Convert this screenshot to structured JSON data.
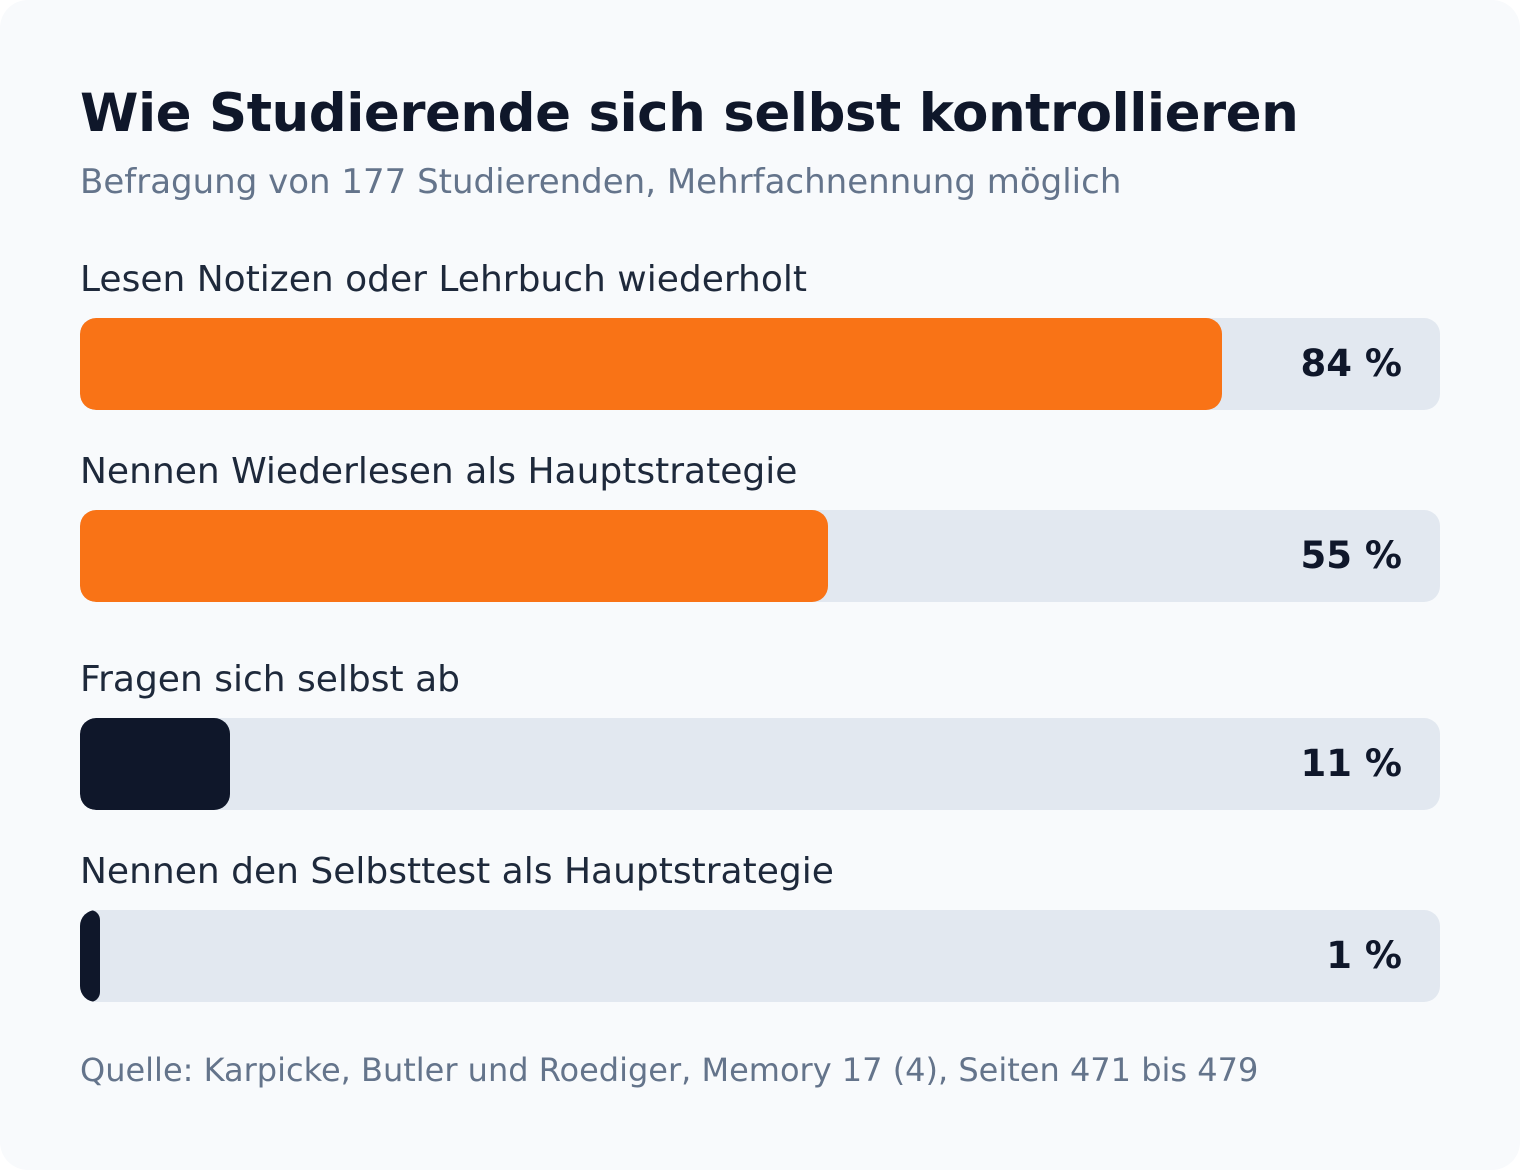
{
  "title": "Wie Studierende sich selbst kontrollieren",
  "subtitle": "Befragung von 177 Studierenden, Mehrfachnennung möglich",
  "source": "Quelle: Karpicke, Butler und Roediger, Memory 17 (4), Seiten 471 bis 479",
  "colors": {
    "background": "#f8fafc",
    "track": "#e2e8f0",
    "accent_orange": "#f97316",
    "accent_dark": "#0f172a",
    "title": "#0f172a",
    "muted": "#64748b"
  },
  "chart_data": {
    "type": "bar",
    "orientation": "horizontal",
    "xlim": [
      0,
      100
    ],
    "unit": "%",
    "categories": [
      "Lesen Notizen oder Lehrbuch wiederholt",
      "Nennen Wiederlesen als Hauptstrategie",
      "Fragen sich selbst ab",
      "Nennen den Selbsttest als Hauptstrategie"
    ],
    "values": [
      84,
      55,
      11,
      1
    ],
    "value_labels": [
      "84 %",
      "55 %",
      "11 %",
      "1 %"
    ],
    "bar_colors": [
      "#f97316",
      "#f97316",
      "#0f172a",
      "#0f172a"
    ],
    "grid": false,
    "legend": "none"
  }
}
